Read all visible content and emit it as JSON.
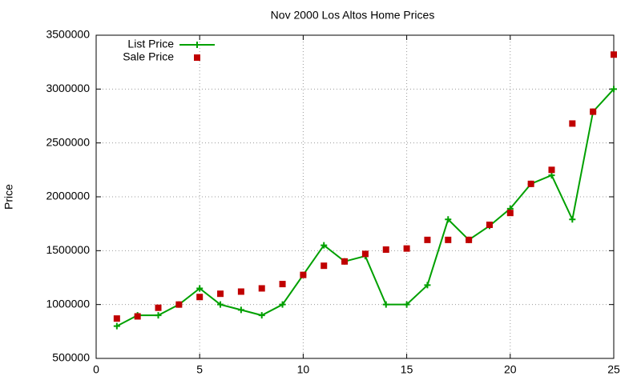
{
  "chart_data": {
    "type": "line",
    "title": "Nov 2000 Los Altos Home Prices",
    "y_label": "Price",
    "x": [
      1,
      2,
      3,
      4,
      5,
      6,
      7,
      8,
      9,
      10,
      11,
      12,
      13,
      14,
      15,
      16,
      17,
      18,
      19,
      20,
      21,
      22,
      23,
      24,
      25
    ],
    "series": [
      {
        "name": "List Price",
        "color": "#00a000",
        "style": "linespoints",
        "values": [
          800000,
          900000,
          900000,
          1000000,
          1150000,
          1000000,
          950000,
          900000,
          1000000,
          1275000,
          1550000,
          1400000,
          1450000,
          1000000,
          1000000,
          1180000,
          1790000,
          1600000,
          1730000,
          1890000,
          2120000,
          2200000,
          1790000,
          2790000,
          3000000
        ]
      },
      {
        "name": "Sale Price",
        "color": "#c00000",
        "style": "points",
        "values": [
          870000,
          890000,
          970000,
          1000000,
          1070000,
          1100000,
          1120000,
          1150000,
          1190000,
          1275000,
          1360000,
          1400000,
          1470000,
          1510000,
          1520000,
          1600000,
          1600000,
          1600000,
          1740000,
          1850000,
          2120000,
          2250000,
          2680000,
          2790000,
          3320000
        ]
      }
    ],
    "xlim": [
      0,
      25
    ],
    "xticks": [
      0,
      5,
      10,
      15,
      20,
      25
    ],
    "ylim": [
      500000,
      3500000
    ],
    "yticks": [
      500000,
      1000000,
      1500000,
      2000000,
      2500000,
      3000000,
      3500000
    ],
    "grid": true,
    "legend": "top-left"
  }
}
